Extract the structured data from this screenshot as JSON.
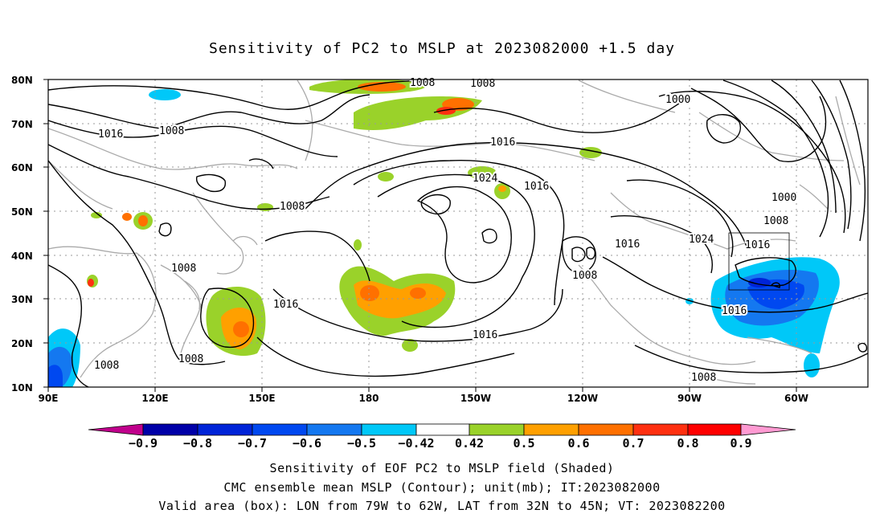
{
  "title": "Sensitivity of PC2 to MSLP at 2023082000 +1.5 day",
  "axes": {
    "lat_labels": [
      "80N",
      "70N",
      "60N",
      "50N",
      "40N",
      "30N",
      "20N",
      "10N"
    ],
    "lon_labels": [
      "90E",
      "120E",
      "150E",
      "180",
      "150W",
      "120W",
      "90W",
      "60W"
    ]
  },
  "contour_labels": [
    "1008",
    "1008",
    "1016",
    "1008",
    "1016",
    "1016",
    "1024",
    "1016",
    "1008",
    "1000",
    "1000",
    "1008",
    "1016",
    "1024",
    "1008",
    "1016",
    "1016",
    "1016",
    "1008",
    "1008",
    "1008",
    "1008"
  ],
  "colorbar": {
    "colors": [
      "#c0008c",
      "#0000a8",
      "#0024d8",
      "#0048f0",
      "#1478f0",
      "#00c8f8",
      "#ffffff",
      "#9ad22a",
      "#ffa000",
      "#ff7000",
      "#ff3010",
      "#ff0000",
      "#ff9ad2"
    ],
    "labels": [
      "−0.9",
      "−0.8",
      "−0.7",
      "−0.6",
      "−0.5",
      "−0.42",
      "0.42",
      "0.5",
      "0.6",
      "0.7",
      "0.8",
      "0.9"
    ]
  },
  "captions": [
    "Sensitivity of EOF PC2 to MSLP field (Shaded)",
    "CMC ensemble mean MSLP (Contour); unit(mb); IT:2023082000",
    "Valid area (box): LON from 79W to 62W, LAT from 32N to 45N; VT: 2023082200"
  ]
}
